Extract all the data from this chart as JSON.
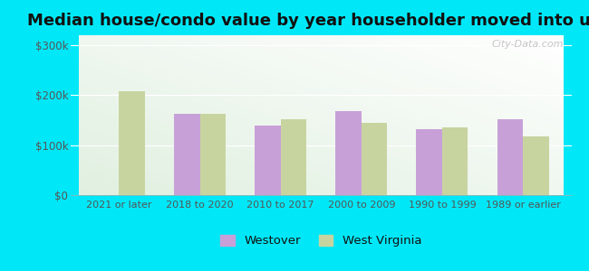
{
  "title": "Median house/condo value by year householder moved into unit",
  "categories": [
    "2021 or later",
    "2018 to 2020",
    "2010 to 2017",
    "2000 to 2009",
    "1990 to 1999",
    "1989 or earlier"
  ],
  "westover": [
    null,
    163000,
    140000,
    168000,
    132000,
    152000
  ],
  "west_virginia": [
    208000,
    163000,
    152000,
    145000,
    135000,
    118000
  ],
  "westover_color": "#c8a0d8",
  "wv_color": "#c8d4a0",
  "background_outer": "#00e8f8",
  "yticks": [
    0,
    100000,
    200000,
    300000
  ],
  "ylabels": [
    "$0",
    "$100k",
    "$200k",
    "$300k"
  ],
  "ylim": [
    0,
    320000
  ],
  "bar_width": 0.32,
  "title_fontsize": 13,
  "watermark": "City-Data.com"
}
